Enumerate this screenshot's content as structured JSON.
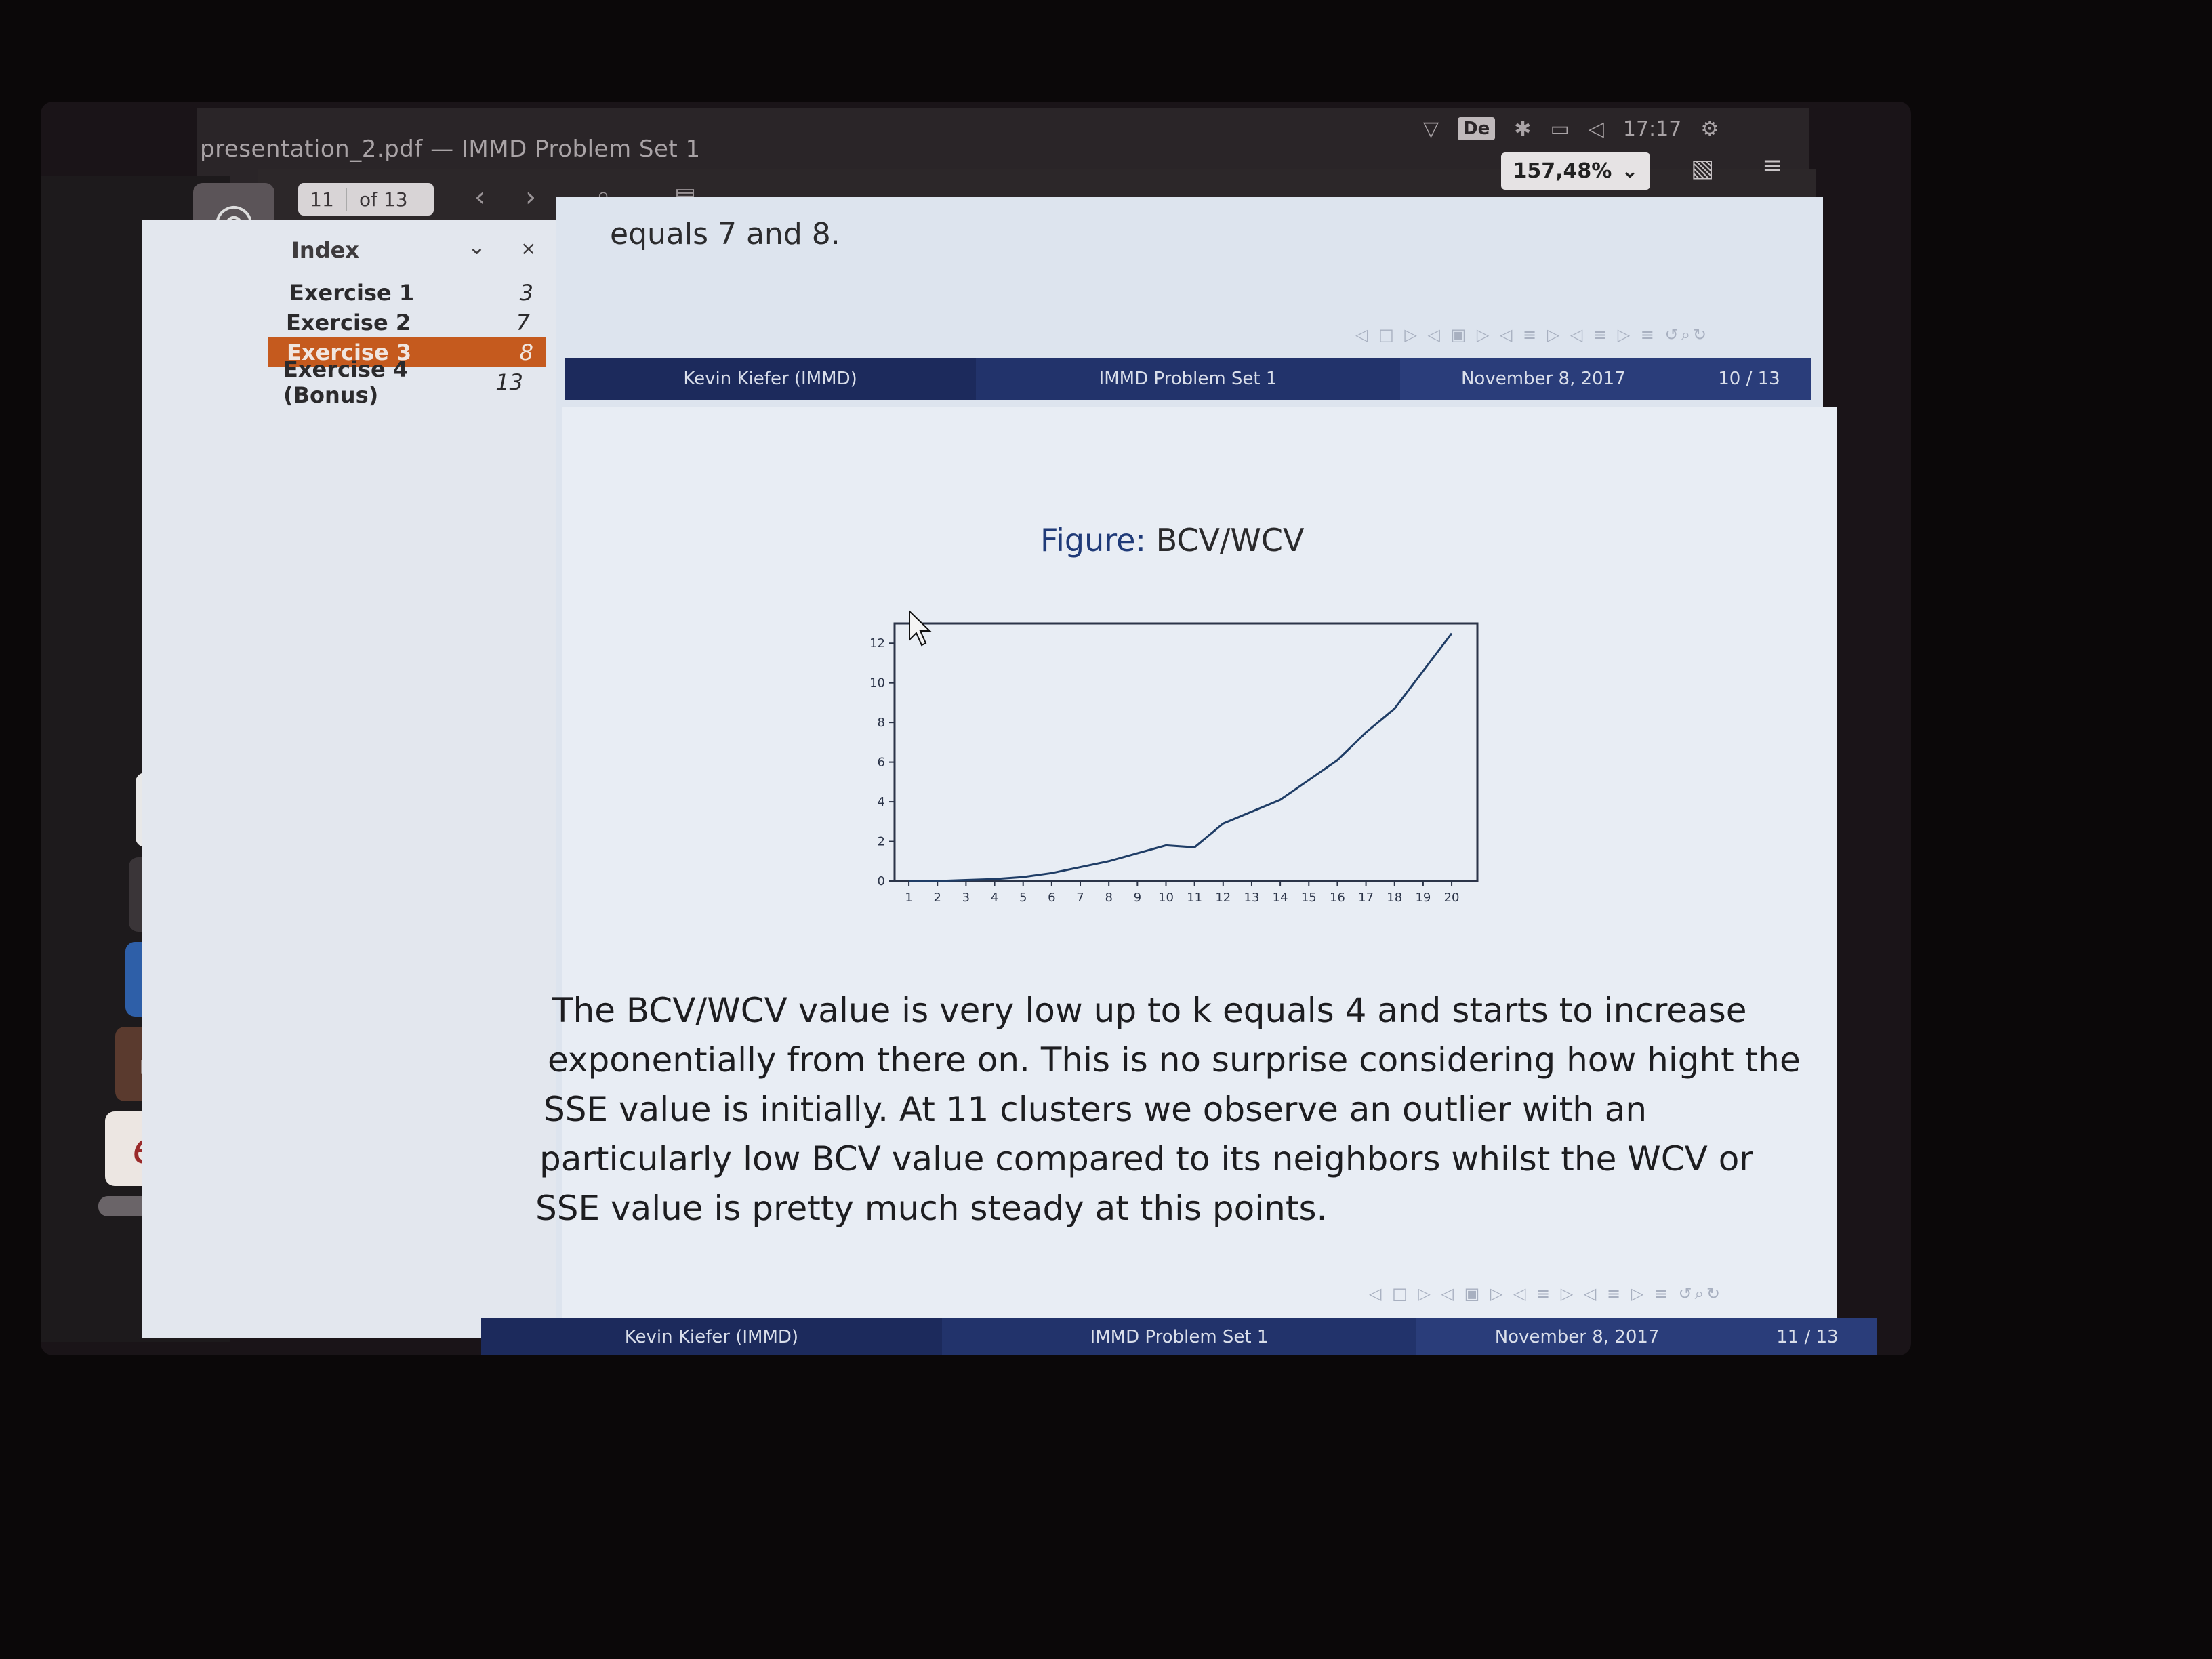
{
  "window": {
    "title": "presentation_2.pdf — IMMD Problem Set 1"
  },
  "system_tray": {
    "keyboard_layout": "De",
    "time": "17:17"
  },
  "toolbar": {
    "current_page": "11",
    "page_total": "of 13",
    "zoom": "157,48%"
  },
  "sidebar": {
    "title": "Index",
    "close_label": "×",
    "items": [
      {
        "label": "Exercise 1",
        "page": "3"
      },
      {
        "label": "Exercise 2",
        "page": "7"
      },
      {
        "label": "Exercise 3",
        "page": "8"
      },
      {
        "label": "Exercise 4 (Bonus)",
        "page": "13"
      }
    ]
  },
  "document": {
    "previous_slide_text": "equals 7 and 8.",
    "footer_prev": {
      "author": "Kevin Kiefer  (IMMD)",
      "title": "IMMD Problem Set 1",
      "date": "November 8, 2017",
      "page": "10 / 13"
    },
    "footer_current": {
      "author": "Kevin Kiefer  (IMMD)",
      "title": "IMMD Problem Set 1",
      "date": "November 8, 2017",
      "page": "11 / 13"
    },
    "figure_caption_label": "Figure:",
    "figure_caption_value": "BCV/WCV",
    "body_lines": [
      "The BCV/WCV value is very low up to k equals 4 and starts to increase",
      "exponentially from there on.  This is no surprise considering how hight the",
      "SSE value is initially.  At 11 clusters we observe an outlier with an",
      "particularly low BCV value compared to its neighbors whilst the WCV or",
      "SSE value is pretty much steady at this points."
    ]
  },
  "colors": {
    "selected_item": "#c55a1e",
    "beamer_dark": "#1c2a5c",
    "beamer_mid": "#2a3d7a",
    "caption_blue": "#1f3a78"
  },
  "chart_data": {
    "type": "line",
    "title": "",
    "xlabel": "",
    "ylabel": "",
    "x": [
      1,
      2,
      3,
      4,
      5,
      6,
      7,
      8,
      9,
      10,
      11,
      12,
      13,
      14,
      15,
      16,
      17,
      18,
      19,
      20
    ],
    "series": [
      {
        "values": [
          0.0,
          0.0,
          0.05,
          0.1,
          0.2,
          0.4,
          0.7,
          1.0,
          1.4,
          1.8,
          1.7,
          2.9,
          3.5,
          4.1,
          5.1,
          6.1,
          7.5,
          8.7,
          10.6,
          12.5
        ]
      }
    ],
    "xticks": [
      "1",
      "2",
      "3",
      "4",
      "5",
      "6",
      "7",
      "8",
      "9",
      "10",
      "11",
      "12",
      "13",
      "14",
      "15",
      "16",
      "17",
      "18",
      "19",
      "20"
    ],
    "yticks": [
      "0",
      "2",
      "4",
      "6",
      "8",
      "10",
      "12"
    ],
    "ylim": [
      0,
      13
    ],
    "xlim": [
      0.5,
      20.9
    ]
  }
}
